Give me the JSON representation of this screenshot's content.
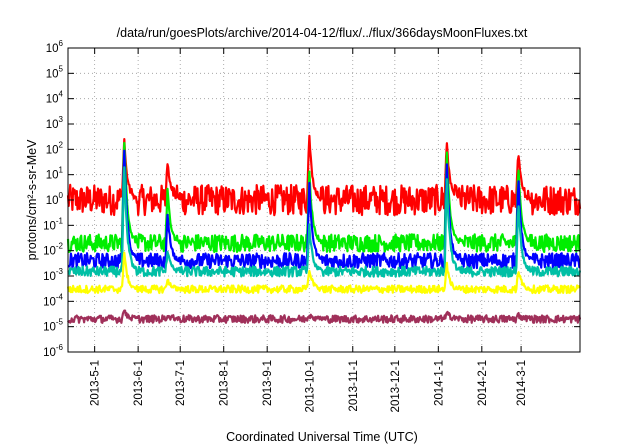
{
  "chart_data": {
    "type": "line",
    "title": "/data/run/goesPlots/archive/2014-04-12/flux/../flux/366daysMoonFluxes.txt",
    "xlabel": "Coordinated Universal Time (UTC)",
    "ylabel": "protons/cm²-s-sr-MeV",
    "yscale": "log",
    "ylim": [
      1e-06,
      1000000.0
    ],
    "xlim": [
      "2013-04-12",
      "2014-04-12"
    ],
    "grid": true,
    "legend": "none",
    "x_ticks": [
      "2013-5-1",
      "2013-6-1",
      "2013-7-1",
      "2013-8-1",
      "2013-9-1",
      "2013-10-1",
      "2013-11-1",
      "2013-12-1",
      "2014-1-1",
      "2014-2-1",
      "2014-3-1"
    ],
    "y_ticks": [
      {
        "base": "10",
        "exp": "-6"
      },
      {
        "base": "10",
        "exp": "-5"
      },
      {
        "base": "10",
        "exp": "-4"
      },
      {
        "base": "10",
        "exp": "-3"
      },
      {
        "base": "10",
        "exp": "-2"
      },
      {
        "base": "10",
        "exp": "-1"
      },
      {
        "base": "10",
        "exp": "0"
      },
      {
        "base": "10",
        "exp": "1"
      },
      {
        "base": "10",
        "exp": "2"
      },
      {
        "base": "10",
        "exp": "3"
      },
      {
        "base": "10",
        "exp": "4"
      },
      {
        "base": "10",
        "exp": "5"
      },
      {
        "base": "10",
        "exp": "6"
      }
    ],
    "event_peaks": [
      "2013-05-22",
      "2013-06-22",
      "2013-10-01",
      "2014-01-07",
      "2014-02-27"
    ],
    "series": [
      {
        "color": "#ff0000",
        "baseline": 1.0,
        "noise_decades": 0.6,
        "peaks": [
          300,
          40,
          500,
          250,
          90
        ]
      },
      {
        "color": "#00ee00",
        "baseline": 0.02,
        "noise_decades": 0.35,
        "peaks": [
          400,
          3,
          20,
          100,
          30
        ]
      },
      {
        "color": "#0000ff",
        "baseline": 0.004,
        "noise_decades": 0.3,
        "peaks": [
          200,
          0.3,
          5,
          40,
          10
        ]
      },
      {
        "color": "#00bfa5",
        "baseline": 0.0015,
        "noise_decades": 0.2,
        "peaks": [
          30,
          0.01,
          0.1,
          10,
          1
        ]
      },
      {
        "color": "#ffff00",
        "baseline": 0.0003,
        "noise_decades": 0.15,
        "peaks": [
          0.01,
          0.0008,
          0.002,
          0.003,
          0.002
        ]
      },
      {
        "color": "#a0305a",
        "baseline": 2e-05,
        "noise_decades": 0.15,
        "peaks": [
          5e-05,
          3e-05,
          3e-05,
          4e-05,
          3e-05
        ]
      }
    ]
  }
}
